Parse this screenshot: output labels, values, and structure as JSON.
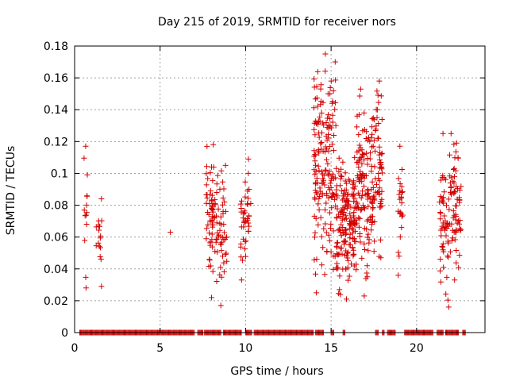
{
  "chart_data": {
    "type": "scatter",
    "title": "Day 215 of 2019, SRMTID for receiver nors",
    "xlabel": "GPS time / hours",
    "ylabel": "SRMTID / TECUs",
    "xlim": [
      0,
      24
    ],
    "ylim": [
      0,
      0.18
    ],
    "xticks": [
      0,
      5,
      10,
      15,
      20
    ],
    "xtick_labels": [
      "0",
      "5",
      "10",
      "15",
      "20"
    ],
    "yticks": [
      0,
      0.02,
      0.04,
      0.06,
      0.08,
      0.1,
      0.12,
      0.14,
      0.16,
      0.18
    ],
    "ytick_labels": [
      "0",
      "0.02",
      "0.04",
      "0.06",
      "0.08",
      "0.1",
      "0.12",
      "0.14",
      "0.16",
      "0.18"
    ],
    "grid": true,
    "marker": "+",
    "color": "#d40000",
    "series": [
      {
        "name": "SRMTID",
        "clusters": [
          {
            "x_range": [
              0.55,
              0.75
            ],
            "y_min": 0.028,
            "y_max": 0.117,
            "count": 14
          },
          {
            "x_range": [
              1.25,
              1.6
            ],
            "y_min": 0.029,
            "y_max": 0.084,
            "count": 16
          },
          {
            "x_range": [
              7.7,
              8.4
            ],
            "y_min": 0.022,
            "y_max": 0.118,
            "count": 70
          },
          {
            "x_range": [
              8.4,
              8.9
            ],
            "y_min": 0.017,
            "y_max": 0.105,
            "count": 40
          },
          {
            "x_range": [
              9.7,
              10.2
            ],
            "y_min": 0.033,
            "y_max": 0.109,
            "count": 40
          },
          {
            "x_range": [
              14.0,
              15.3
            ],
            "y_min": 0.025,
            "y_max": 0.175,
            "count": 170
          },
          {
            "x_range": [
              15.3,
              16.5
            ],
            "y_min": 0.021,
            "y_max": 0.11,
            "count": 170
          },
          {
            "x_range": [
              16.5,
              17.5
            ],
            "y_min": 0.023,
            "y_max": 0.153,
            "count": 130
          },
          {
            "x_range": [
              17.5,
              18.0
            ],
            "y_min": 0.047,
            "y_max": 0.158,
            "count": 60
          },
          {
            "x_range": [
              18.9,
              19.2
            ],
            "y_min": 0.036,
            "y_max": 0.117,
            "count": 25
          },
          {
            "x_range": [
              21.3,
              22.0
            ],
            "y_min": 0.016,
            "y_max": 0.125,
            "count": 60
          },
          {
            "x_range": [
              22.0,
              22.6
            ],
            "y_min": 0.033,
            "y_max": 0.125,
            "count": 60
          }
        ],
        "isolated_points": [
          {
            "x": 5.6,
            "y": 0.063
          },
          {
            "x": 10.2,
            "y": 0.09
          },
          {
            "x": 10.3,
            "y": 0.081
          }
        ],
        "zero_segments": [
          [
            0.3,
            7.0
          ],
          [
            7.2,
            7.5
          ],
          [
            7.6,
            8.6
          ],
          [
            8.7,
            9.8
          ],
          [
            10.0,
            10.4
          ],
          [
            10.5,
            14.0
          ],
          [
            14.1,
            14.6
          ],
          [
            15.0,
            15.2
          ],
          [
            15.7,
            15.8
          ],
          [
            17.6,
            17.8
          ],
          [
            18.0,
            18.1
          ],
          [
            18.3,
            18.8
          ],
          [
            19.3,
            21.0
          ],
          [
            21.2,
            21.6
          ],
          [
            21.7,
            22.5
          ],
          [
            22.7,
            22.9
          ]
        ]
      }
    ]
  }
}
